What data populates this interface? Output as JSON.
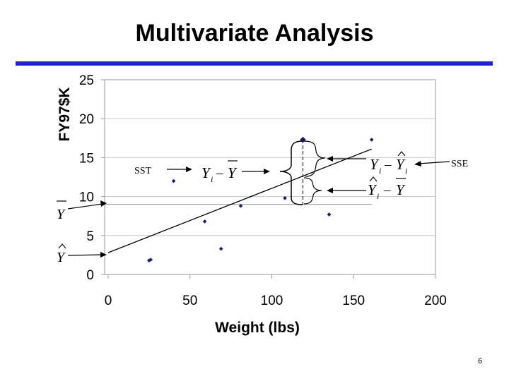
{
  "slide": {
    "title": "Multivariate Analysis",
    "page_number": "6",
    "rule_color": "#1f24c8"
  },
  "chart_data": {
    "type": "scatter",
    "xlabel": "Weight (lbs)",
    "ylabel": "FY97$K",
    "xlim": [
      0,
      200
    ],
    "ylim": [
      0,
      25
    ],
    "x_ticks": [
      "0",
      "50",
      "100",
      "150",
      "200"
    ],
    "y_ticks": [
      "0",
      "5",
      "10",
      "15",
      "20",
      "25"
    ],
    "grid": {
      "horizontal": true,
      "vertical": false
    },
    "points": [
      {
        "x": 25,
        "y": 1.8
      },
      {
        "x": 26,
        "y": 1.9
      },
      {
        "x": 40,
        "y": 12.0
      },
      {
        "x": 59,
        "y": 6.8
      },
      {
        "x": 69,
        "y": 3.3
      },
      {
        "x": 81,
        "y": 8.8
      },
      {
        "x": 108,
        "y": 9.8
      },
      {
        "x": 119,
        "y": 17.3
      },
      {
        "x": 135,
        "y": 7.7
      },
      {
        "x": 161,
        "y": 17.3
      }
    ],
    "regression_line": {
      "x": [
        0,
        161
      ],
      "y": [
        2.8,
        16.1
      ]
    },
    "mean_line_y": 9.0,
    "highlight_x": 119,
    "annotations": {
      "sst": "SST",
      "sse": "SSE",
      "ybar_label": "Y",
      "yhat_label": "Y",
      "deviation_total": {
        "a": "Y",
        "a_sub": "i",
        "op": "–",
        "b": "Y"
      },
      "deviation_error": {
        "a": "Y",
        "a_sub": "i",
        "op": "–",
        "b": "Y",
        "b_sub": "i"
      },
      "deviation_regression": {
        "a": "Y",
        "a_sub": "i",
        "op": "–",
        "b": "Y"
      }
    },
    "point_color": "#1a1a6e",
    "line_color": "#000000"
  }
}
